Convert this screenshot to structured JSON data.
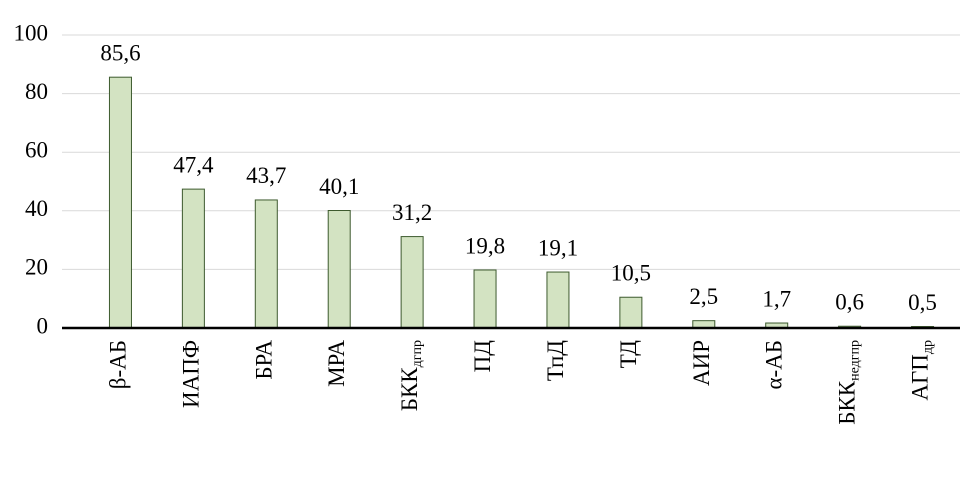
{
  "chart_data": {
    "type": "bar",
    "categories": [
      "β-АБ",
      "ИАПФ",
      "БРА",
      "МРА",
      "БКК",
      "ПД",
      "ТпД",
      "ТД",
      "АИР",
      "α-АБ",
      "БКК",
      "АГП"
    ],
    "category_subscripts": [
      null,
      null,
      null,
      null,
      "дгпр",
      null,
      null,
      null,
      null,
      null,
      "недгпр",
      "др"
    ],
    "values": [
      85.6,
      47.4,
      43.7,
      40.1,
      31.2,
      19.8,
      19.1,
      10.5,
      2.5,
      1.7,
      0.6,
      0.5
    ],
    "value_labels": [
      "85,6",
      "47,4",
      "43,7",
      "40,1",
      "31,2",
      "19,8",
      "19,1",
      "10,5",
      "2,5",
      "1,7",
      "0,6",
      "0,5"
    ],
    "color": "#d3e3c2",
    "ylim": [
      0,
      100
    ],
    "yticks": [
      0,
      20,
      40,
      60,
      80,
      100
    ],
    "grid": true
  }
}
